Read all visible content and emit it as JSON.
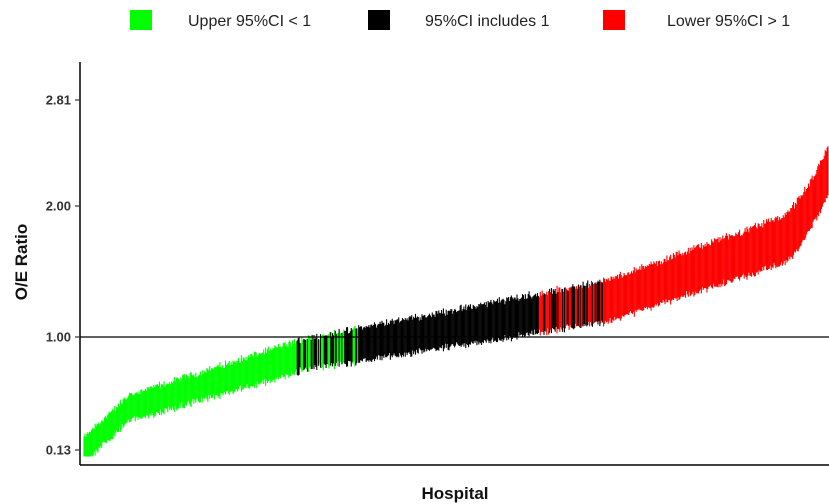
{
  "chart_data": {
    "type": "errorbar",
    "xlabel": "Hospital",
    "ylabel": "O/E Ratio",
    "yticks": [
      {
        "value": 0.13,
        "label": "0.13"
      },
      {
        "value": 1.0,
        "label": "1.00"
      },
      {
        "value": 2.0,
        "label": "2.00"
      },
      {
        "value": 2.81,
        "label": "2.81"
      }
    ],
    "ylim": [
      0.05,
      3.1
    ],
    "reference_line": 1.0,
    "n_hospitals": 800,
    "legend_position": "top",
    "series": [
      {
        "name": "Upper 95%CI < 1",
        "color": "#00ff00",
        "rank_range": [
          1,
          300
        ],
        "oe_range": [
          0.13,
          0.86
        ]
      },
      {
        "name": "95%CI includes 1",
        "color": "#000000",
        "rank_range": [
          230,
          560
        ],
        "oe_range": [
          0.86,
          1.23
        ]
      },
      {
        "name": "Lower 95%CI > 1",
        "color": "#ff0000",
        "rank_range": [
          490,
          800
        ],
        "oe_range": [
          1.23,
          2.2
        ]
      }
    ],
    "grid": false
  }
}
